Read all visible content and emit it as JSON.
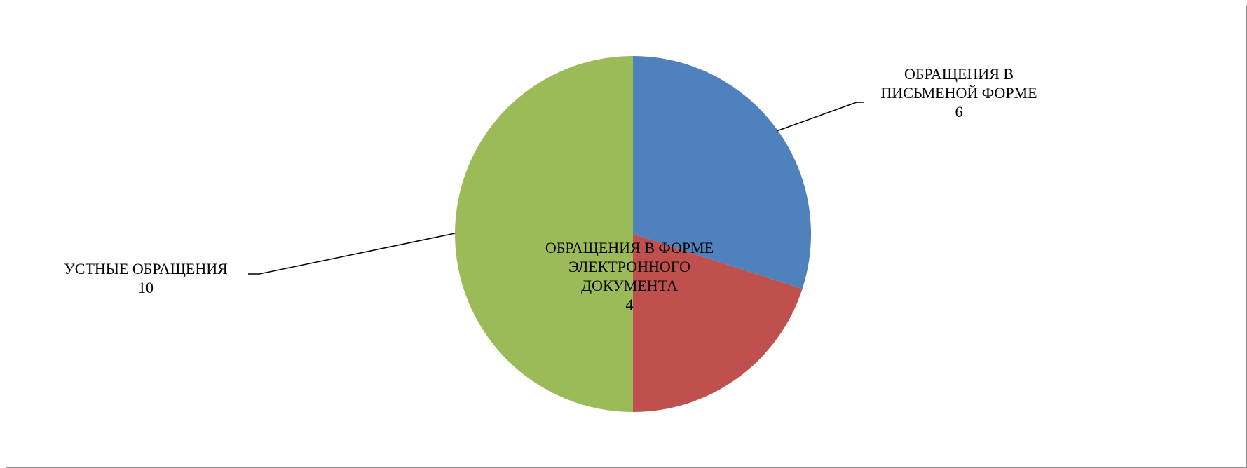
{
  "chart_data": {
    "type": "pie",
    "title": "",
    "start_angle_deg": 0,
    "direction": "clockwise",
    "legend": "none",
    "slices": [
      {
        "label_lines": [
          "ОБРАЩЕНИЯ В",
          "ПИСЬМЕНОЙ ФОРМЕ"
        ],
        "value": 6,
        "color": "#4f81bd"
      },
      {
        "label_lines": [
          "ОБРАЩЕНИЯ В ФОРМЕ",
          "ЭЛЕКТРОННОГО",
          "ДОКУМЕНТА"
        ],
        "value": 4,
        "color": "#c0504d"
      },
      {
        "label_lines": [
          "УСТНЫЕ ОБРАЩЕНИЯ"
        ],
        "value": 10,
        "color": "#9bbb59"
      }
    ]
  }
}
